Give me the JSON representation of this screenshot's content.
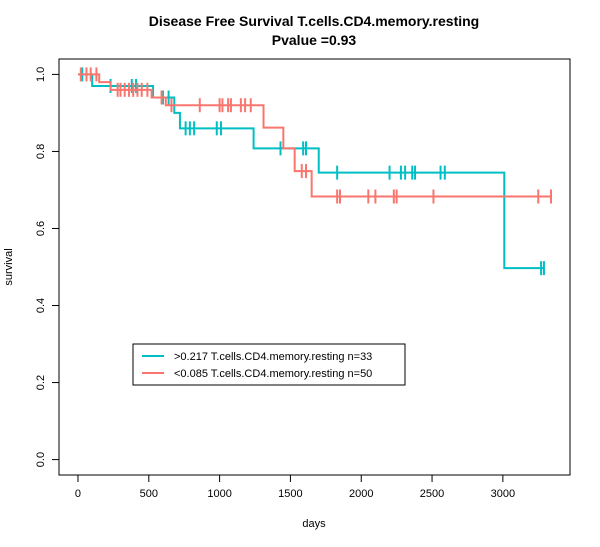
{
  "chart_data": {
    "type": "line",
    "title": "Disease Free Survival T.cells.CD4.memory.resting",
    "subtitle": "Pvalue =0.93",
    "xlabel": "days",
    "ylabel": "survival",
    "xlim": [
      0,
      3400
    ],
    "ylim": [
      0,
      1
    ],
    "x_ticks": [
      "0",
      "500",
      "1000",
      "1500",
      "2000",
      "2500",
      "3000"
    ],
    "y_ticks": [
      "0.0",
      "0.2",
      "0.4",
      "0.6",
      "0.8",
      "1.0"
    ],
    "legend_position": "bottom-left",
    "series": [
      {
        "name": ">0.217 T.cells.CD4.memory.resting n=33",
        "color": "#00BFC4",
        "steps": [
          [
            0,
            1.0
          ],
          [
            100,
            0.97
          ],
          [
            530,
            0.94
          ],
          [
            680,
            0.9
          ],
          [
            720,
            0.86
          ],
          [
            1240,
            0.808
          ],
          [
            1700,
            0.745
          ],
          [
            3010,
            0.497
          ],
          [
            3290,
            0.497
          ]
        ],
        "censors": [
          [
            30,
            1.0
          ],
          [
            230,
            0.97
          ],
          [
            380,
            0.97
          ],
          [
            410,
            0.97
          ],
          [
            600,
            0.94
          ],
          [
            640,
            0.94
          ],
          [
            760,
            0.86
          ],
          [
            790,
            0.86
          ],
          [
            820,
            0.86
          ],
          [
            980,
            0.86
          ],
          [
            1010,
            0.86
          ],
          [
            1430,
            0.808
          ],
          [
            1590,
            0.808
          ],
          [
            1610,
            0.808
          ],
          [
            1830,
            0.745
          ],
          [
            2200,
            0.745
          ],
          [
            2280,
            0.745
          ],
          [
            2310,
            0.745
          ],
          [
            2360,
            0.745
          ],
          [
            2380,
            0.745
          ],
          [
            2560,
            0.745
          ],
          [
            2590,
            0.745
          ],
          [
            3270,
            0.497
          ],
          [
            3290,
            0.497
          ]
        ]
      },
      {
        "name": "<0.085 T.cells.CD4.memory.resting n=50",
        "color": "#F8766D",
        "steps": [
          [
            0,
            1.0
          ],
          [
            150,
            0.98
          ],
          [
            230,
            0.96
          ],
          [
            520,
            0.94
          ],
          [
            620,
            0.92
          ],
          [
            1310,
            0.862
          ],
          [
            1450,
            0.808
          ],
          [
            1530,
            0.749
          ],
          [
            1650,
            0.683
          ],
          [
            3340,
            0.683
          ]
        ],
        "censors": [
          [
            20,
            1.0
          ],
          [
            60,
            1.0
          ],
          [
            90,
            1.0
          ],
          [
            130,
            1.0
          ],
          [
            280,
            0.96
          ],
          [
            300,
            0.96
          ],
          [
            330,
            0.96
          ],
          [
            360,
            0.96
          ],
          [
            390,
            0.96
          ],
          [
            420,
            0.96
          ],
          [
            450,
            0.96
          ],
          [
            490,
            0.96
          ],
          [
            590,
            0.94
          ],
          [
            660,
            0.92
          ],
          [
            860,
            0.92
          ],
          [
            1000,
            0.92
          ],
          [
            1020,
            0.92
          ],
          [
            1060,
            0.92
          ],
          [
            1080,
            0.92
          ],
          [
            1150,
            0.92
          ],
          [
            1180,
            0.92
          ],
          [
            1220,
            0.92
          ],
          [
            1580,
            0.749
          ],
          [
            1610,
            0.749
          ],
          [
            1830,
            0.683
          ],
          [
            1850,
            0.683
          ],
          [
            2050,
            0.683
          ],
          [
            2100,
            0.683
          ],
          [
            2230,
            0.683
          ],
          [
            2250,
            0.683
          ],
          [
            2510,
            0.683
          ],
          [
            3250,
            0.683
          ],
          [
            3340,
            0.683
          ]
        ]
      }
    ]
  }
}
